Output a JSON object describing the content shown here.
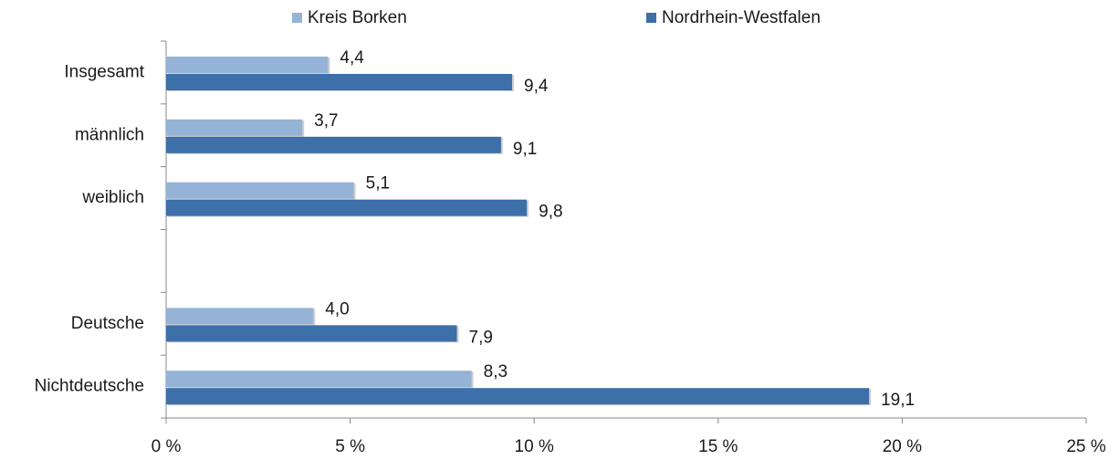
{
  "chart_data": {
    "type": "bar",
    "orientation": "horizontal",
    "categories": [
      "Insgesamt",
      "männlich",
      "weiblich",
      null,
      "Deutsche",
      "Nichtdeutsche"
    ],
    "series": [
      {
        "name": "Kreis Borken",
        "color": "#95b3d7",
        "values": [
          4.4,
          3.7,
          5.1,
          null,
          4.0,
          8.3
        ],
        "value_labels": [
          "4,4",
          "3,7",
          "5,1",
          null,
          "4,0",
          "8,3"
        ]
      },
      {
        "name": "Nordrhein-Westfalen",
        "color": "#3d6fa8",
        "values": [
          9.4,
          9.1,
          9.8,
          null,
          7.9,
          19.1
        ],
        "value_labels": [
          "9,4",
          "9,1",
          "9,8",
          null,
          "7,9",
          "19,1"
        ]
      }
    ],
    "xlim": [
      0,
      25
    ],
    "xticks": [
      {
        "value": 0,
        "label": "0 %"
      },
      {
        "value": 5,
        "label": "5 %"
      },
      {
        "value": 10,
        "label": "10 %"
      },
      {
        "value": 15,
        "label": "15 %"
      },
      {
        "value": 20,
        "label": "20 %"
      },
      {
        "value": 25,
        "label": "25 %"
      }
    ],
    "legend": "top"
  }
}
